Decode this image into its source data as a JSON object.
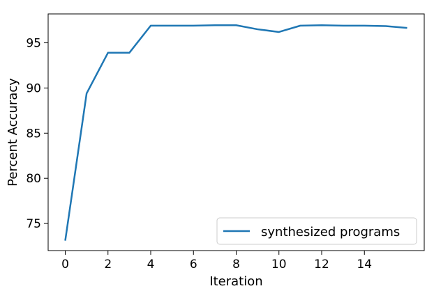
{
  "chart_data": {
    "type": "line",
    "xlabel": "Iteration",
    "ylabel": "Percent Accuracy",
    "xlim": [
      -0.8,
      16.8
    ],
    "ylim": [
      72,
      98.2
    ],
    "xticks": [
      0,
      2,
      4,
      6,
      8,
      10,
      12,
      14
    ],
    "yticks": [
      75,
      80,
      85,
      90,
      95
    ],
    "grid": false,
    "legend_position": "lower-right",
    "series": [
      {
        "name": "synthesized programs",
        "color": "#1f77b4",
        "x": [
          0,
          1,
          2,
          3,
          4,
          5,
          6,
          7,
          8,
          9,
          10,
          11,
          12,
          13,
          14,
          15,
          16
        ],
        "y": [
          73.1,
          89.4,
          93.9,
          93.9,
          96.9,
          96.9,
          96.9,
          96.95,
          96.95,
          96.5,
          96.2,
          96.9,
          96.95,
          96.9,
          96.9,
          96.85,
          96.65
        ]
      }
    ]
  }
}
